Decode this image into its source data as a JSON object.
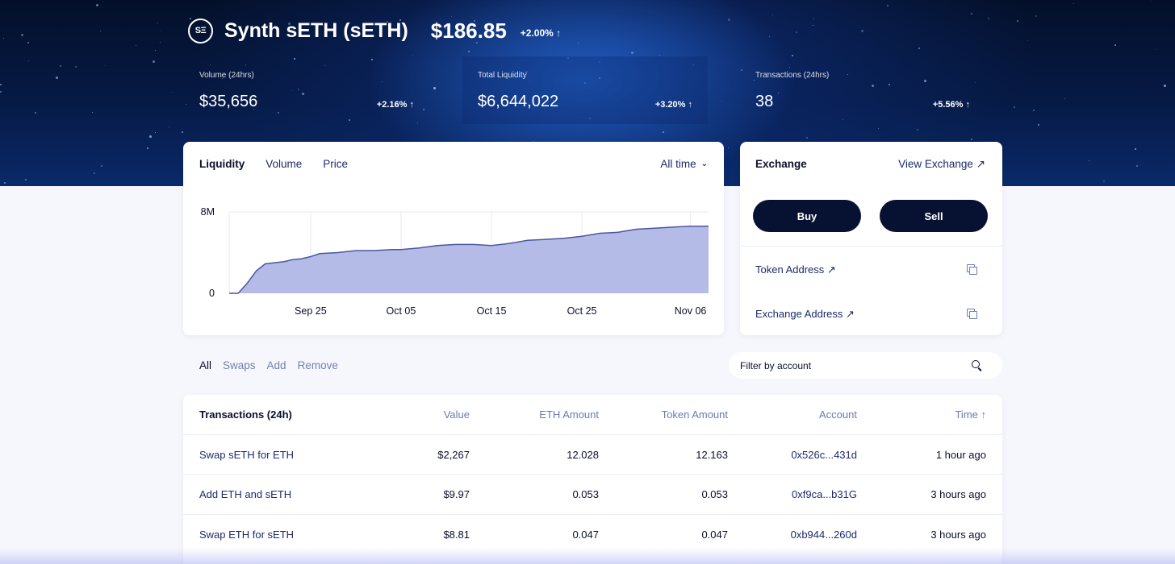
{
  "header": {
    "logo_text": "SΞ",
    "token_name": "Synth sETH (sETH)",
    "price": "$186.85",
    "price_change": "+2.00% ↑"
  },
  "stats": [
    {
      "label": "Volume (24hrs)",
      "value": "$35,656",
      "delta": "+2.16% ↑"
    },
    {
      "label": "Total Liquidity",
      "value": "$6,644,022",
      "delta": "+3.20% ↑"
    },
    {
      "label": "Transactions (24hrs)",
      "value": "38",
      "delta": "+5.56% ↑"
    }
  ],
  "chart_card": {
    "tabs": [
      "Liquidity",
      "Volume",
      "Price"
    ],
    "active_tab": "Liquidity",
    "range_label": "All time",
    "range_icon": "chevron-down-icon"
  },
  "chart_data": {
    "type": "area",
    "title": "",
    "xlabel": "",
    "ylabel": "",
    "y_tick_labels": [
      "0",
      "8M"
    ],
    "x_tick_labels": [
      "Sep 25",
      "Oct 05",
      "Oct 15",
      "Oct 25",
      "Nov 06"
    ],
    "ylim": [
      0,
      8000000
    ],
    "grid": true,
    "fill_color": "#b4bbe7",
    "line_color": "#4b57a3",
    "x": [
      "Sep 16",
      "Sep 17",
      "Sep 18",
      "Sep 19",
      "Sep 20",
      "Sep 21",
      "Sep 22",
      "Sep 23",
      "Sep 24",
      "Sep 25",
      "Sep 26",
      "Sep 28",
      "Sep 30",
      "Oct 02",
      "Oct 04",
      "Oct 05",
      "Oct 07",
      "Oct 09",
      "Oct 11",
      "Oct 13",
      "Oct 15",
      "Oct 17",
      "Oct 19",
      "Oct 21",
      "Oct 23",
      "Oct 25",
      "Oct 27",
      "Oct 29",
      "Oct 31",
      "Nov 02",
      "Nov 04",
      "Nov 06",
      "Nov 08"
    ],
    "values": [
      0,
      0,
      1000000,
      2200000,
      2900000,
      3000000,
      3100000,
      3300000,
      3400000,
      3600000,
      3900000,
      4000000,
      4200000,
      4200000,
      4300000,
      4300000,
      4450000,
      4700000,
      4800000,
      4800000,
      4700000,
      4900000,
      5200000,
      5300000,
      5400000,
      5600000,
      5900000,
      6000000,
      6300000,
      6400000,
      6500000,
      6600000,
      6600000
    ]
  },
  "exchange": {
    "title": "Exchange",
    "view_link": "View Exchange ↗",
    "buy_label": "Buy",
    "sell_label": "Sell",
    "token_address_label": "Token Address ↗",
    "exchange_address_label": "Exchange Address ↗"
  },
  "filters": [
    "All",
    "Swaps",
    "Add",
    "Remove"
  ],
  "active_filter": "All",
  "search": {
    "placeholder": "Filter by account"
  },
  "table": {
    "headers": [
      "Transactions (24h)",
      "Value",
      "ETH Amount",
      "Token Amount",
      "Account",
      "Time ↑"
    ],
    "rows": [
      [
        "Swap sETH for ETH",
        "$2,267",
        "12.028",
        "12.163",
        "0x526c...431d",
        "1 hour ago"
      ],
      [
        "Add ETH and sETH",
        "$9.97",
        "0.053",
        "0.053",
        "0xf9ca...b31G",
        "3 hours ago"
      ],
      [
        "Swap ETH for sETH",
        "$8.81",
        "0.047",
        "0.047",
        "0xb944...260d",
        "3 hours ago"
      ]
    ]
  }
}
